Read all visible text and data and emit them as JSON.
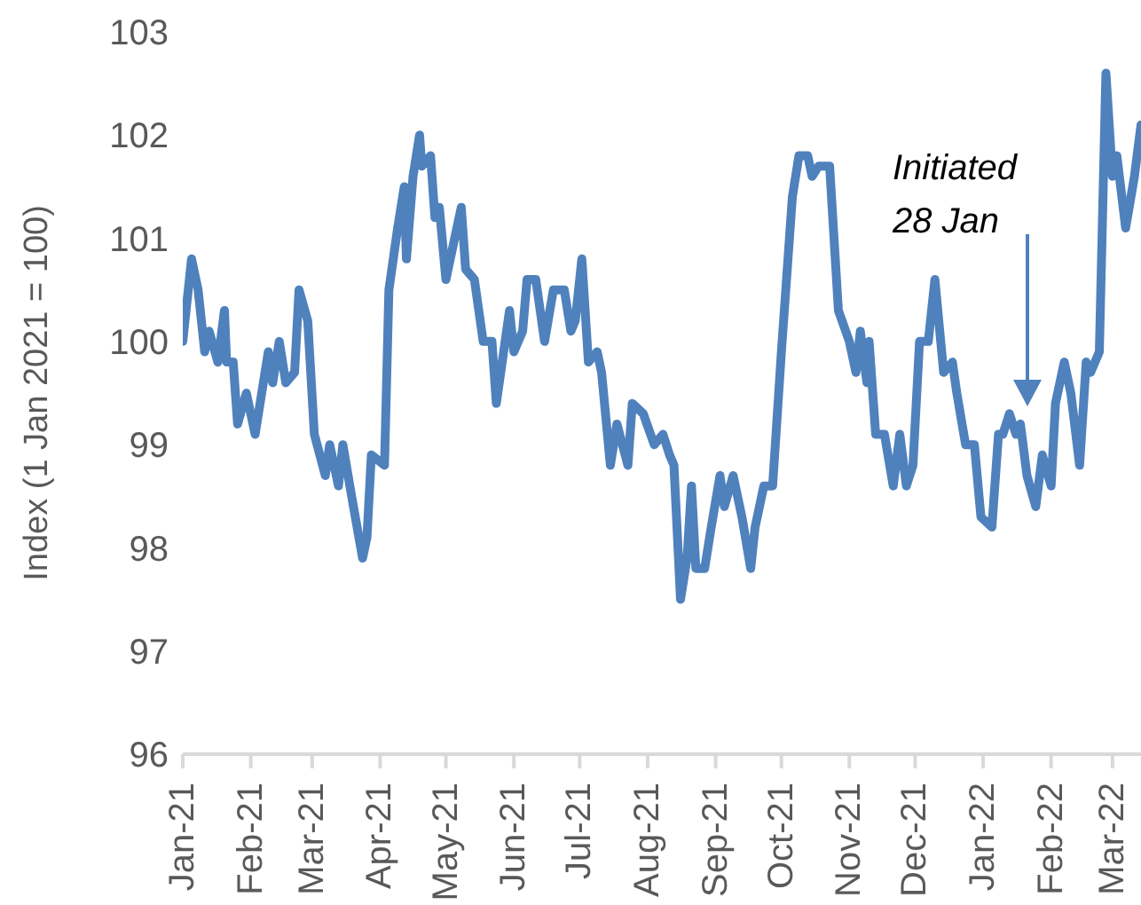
{
  "chart_data": {
    "type": "line",
    "ylabel": "Index (1 Jan 2021 = 100)",
    "color": "#4f81bd",
    "line_style": "solid",
    "marker": "none",
    "x": [
      "2021-01-01",
      "2021-01-03",
      "2021-01-05",
      "2021-01-08",
      "2021-01-11",
      "2021-01-13",
      "2021-01-17",
      "2021-01-20",
      "2021-01-21",
      "2021-01-24",
      "2021-01-26",
      "2021-01-30",
      "2021-02-03",
      "2021-02-09",
      "2021-02-11",
      "2021-02-14",
      "2021-02-17",
      "2021-02-21",
      "2021-02-23",
      "2021-02-27",
      "2021-03-02",
      "2021-03-07",
      "2021-03-09",
      "2021-03-13",
      "2021-03-15",
      "2021-03-19",
      "2021-03-24",
      "2021-03-26",
      "2021-03-28",
      "2021-04-03",
      "2021-04-05",
      "2021-04-09",
      "2021-04-12",
      "2021-04-13",
      "2021-04-16",
      "2021-04-19",
      "2021-04-20",
      "2021-04-24",
      "2021-04-26",
      "2021-04-28",
      "2021-05-01",
      "2021-05-08",
      "2021-05-10",
      "2021-05-14",
      "2021-05-18",
      "2021-05-22",
      "2021-05-24",
      "2021-05-30",
      "2021-06-01",
      "2021-06-05",
      "2021-06-07",
      "2021-06-11",
      "2021-06-15",
      "2021-06-19",
      "2021-06-24",
      "2021-06-27",
      "2021-06-29",
      "2021-07-02",
      "2021-07-05",
      "2021-07-09",
      "2021-07-11",
      "2021-07-15",
      "2021-07-18",
      "2021-07-23",
      "2021-07-25",
      "2021-07-30",
      "2021-08-04",
      "2021-08-08",
      "2021-08-11",
      "2021-08-13",
      "2021-08-16",
      "2021-08-19",
      "2021-08-21",
      "2021-08-23",
      "2021-08-27",
      "2021-08-30",
      "2021-09-03",
      "2021-09-05",
      "2021-09-09",
      "2021-09-13",
      "2021-09-17",
      "2021-09-19",
      "2021-09-23",
      "2021-09-27",
      "2021-10-01",
      "2021-10-06",
      "2021-10-09",
      "2021-10-13",
      "2021-10-15",
      "2021-10-18",
      "2021-10-23",
      "2021-10-27",
      "2021-11-01",
      "2021-11-04",
      "2021-11-06",
      "2021-11-09",
      "2021-11-10",
      "2021-11-13",
      "2021-11-17",
      "2021-11-21",
      "2021-11-24",
      "2021-11-27",
      "2021-11-30",
      "2021-12-03",
      "2021-12-07",
      "2021-12-10",
      "2021-12-14",
      "2021-12-18",
      "2021-12-20",
      "2021-12-24",
      "2021-12-28",
      "2021-12-31",
      "2022-01-05",
      "2022-01-08",
      "2022-01-10",
      "2022-01-13",
      "2022-01-16",
      "2022-01-18",
      "2022-01-21",
      "2022-01-25",
      "2022-01-28",
      "2022-02-01",
      "2022-02-03",
      "2022-02-07",
      "2022-02-10",
      "2022-02-14",
      "2022-02-17",
      "2022-02-19",
      "2022-02-23",
      "2022-02-26",
      "2022-03-01",
      "2022-03-03",
      "2022-03-07",
      "2022-03-11",
      "2022-03-14"
    ],
    "values": [
      100.0,
      100.4,
      100.8,
      100.5,
      99.9,
      100.1,
      99.8,
      100.3,
      99.8,
      99.8,
      99.2,
      99.5,
      99.1,
      99.9,
      99.6,
      100.0,
      99.6,
      99.7,
      100.5,
      100.2,
      99.1,
      98.7,
      99.0,
      98.6,
      99.0,
      98.5,
      97.9,
      98.1,
      98.9,
      98.8,
      100.5,
      101.1,
      101.5,
      100.8,
      101.6,
      102.0,
      101.7,
      101.8,
      101.2,
      101.3,
      100.6,
      101.3,
      100.7,
      100.6,
      100.0,
      100.0,
      99.4,
      100.3,
      99.9,
      100.1,
      100.6,
      100.6,
      100.0,
      100.5,
      100.5,
      100.1,
      100.2,
      100.8,
      99.8,
      99.9,
      99.7,
      98.8,
      99.2,
      98.8,
      99.4,
      99.3,
      99.0,
      99.1,
      98.9,
      98.8,
      97.5,
      97.9,
      98.6,
      97.8,
      97.8,
      98.2,
      98.7,
      98.4,
      98.7,
      98.3,
      97.8,
      98.2,
      98.6,
      98.6,
      99.9,
      101.4,
      101.8,
      101.8,
      101.6,
      101.7,
      101.7,
      100.3,
      100.0,
      99.7,
      100.1,
      99.6,
      100.0,
      99.1,
      99.1,
      98.6,
      99.1,
      98.6,
      98.8,
      100.0,
      100.0,
      100.6,
      99.7,
      99.8,
      99.5,
      99.0,
      99.0,
      98.3,
      98.2,
      99.1,
      99.1,
      99.3,
      99.1,
      99.2,
      98.7,
      98.4,
      98.9,
      98.6,
      99.4,
      99.8,
      99.5,
      98.8,
      99.8,
      99.7,
      99.9,
      102.6,
      101.6,
      101.8,
      101.1,
      101.6,
      102.1
    ],
    "xlim": [
      "2021-01-01",
      "2022-03-14"
    ],
    "xticks": [
      {
        "value": "2021-01-01",
        "label": "Jan-21"
      },
      {
        "value": "2021-02-01",
        "label": "Feb-21"
      },
      {
        "value": "2021-03-01",
        "label": "Mar-21"
      },
      {
        "value": "2021-04-01",
        "label": "Apr-21"
      },
      {
        "value": "2021-05-01",
        "label": "May-21"
      },
      {
        "value": "2021-06-01",
        "label": "Jun-21"
      },
      {
        "value": "2021-07-01",
        "label": "Jul-21"
      },
      {
        "value": "2021-08-01",
        "label": "Aug-21"
      },
      {
        "value": "2021-09-01",
        "label": "Sep-21"
      },
      {
        "value": "2021-10-01",
        "label": "Oct-21"
      },
      {
        "value": "2021-11-01",
        "label": "Nov-21"
      },
      {
        "value": "2021-12-01",
        "label": "Dec-21"
      },
      {
        "value": "2022-01-01",
        "label": "Jan-22"
      },
      {
        "value": "2022-02-01",
        "label": "Feb-22"
      },
      {
        "value": "2022-03-01",
        "label": "Mar-22"
      }
    ],
    "ylim": [
      96,
      103
    ],
    "yticks": [
      96,
      97,
      98,
      99,
      100,
      101,
      102,
      103
    ],
    "annotations": [
      "Initiated\n28 Jan"
    ]
  }
}
